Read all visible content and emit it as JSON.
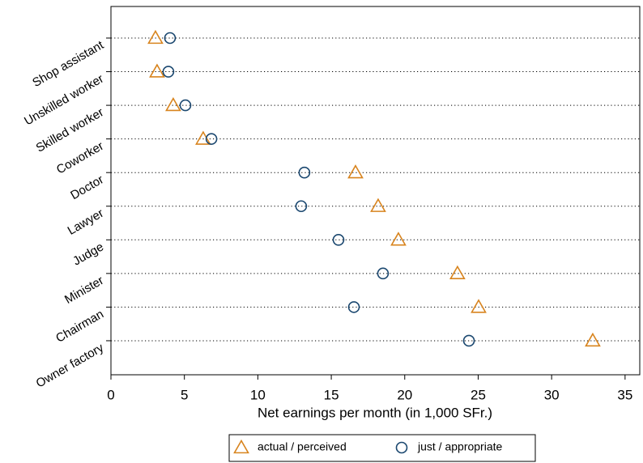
{
  "chart_data": {
    "type": "dot",
    "xlabel": "Net earnings per month (in 1,000 SFr.)",
    "categories": [
      "Shop assistant",
      "Unskilled worker",
      "Skilled worker",
      "Coworker",
      "Doctor",
      "Lawyer",
      "Judge",
      "Minister",
      "Chairman",
      "Owner factory"
    ],
    "series": [
      {
        "name": "actual / perceived",
        "color": "#d8841e",
        "marker": "triangle",
        "values": [
          3.03,
          3.14,
          4.24,
          6.28,
          16.65,
          18.19,
          19.57,
          23.59,
          25.03,
          32.8
        ]
      },
      {
        "name": "just / appropriate",
        "color": "#1a476f",
        "marker": "circle",
        "values": [
          4.02,
          3.91,
          5.07,
          6.84,
          13.17,
          12.95,
          15.49,
          18.52,
          16.54,
          24.37
        ]
      }
    ],
    "xlim": [
      0,
      36
    ],
    "xticks": [
      0,
      5,
      10,
      15,
      20,
      25,
      30,
      35
    ],
    "grid": true,
    "legend": "bottom"
  }
}
